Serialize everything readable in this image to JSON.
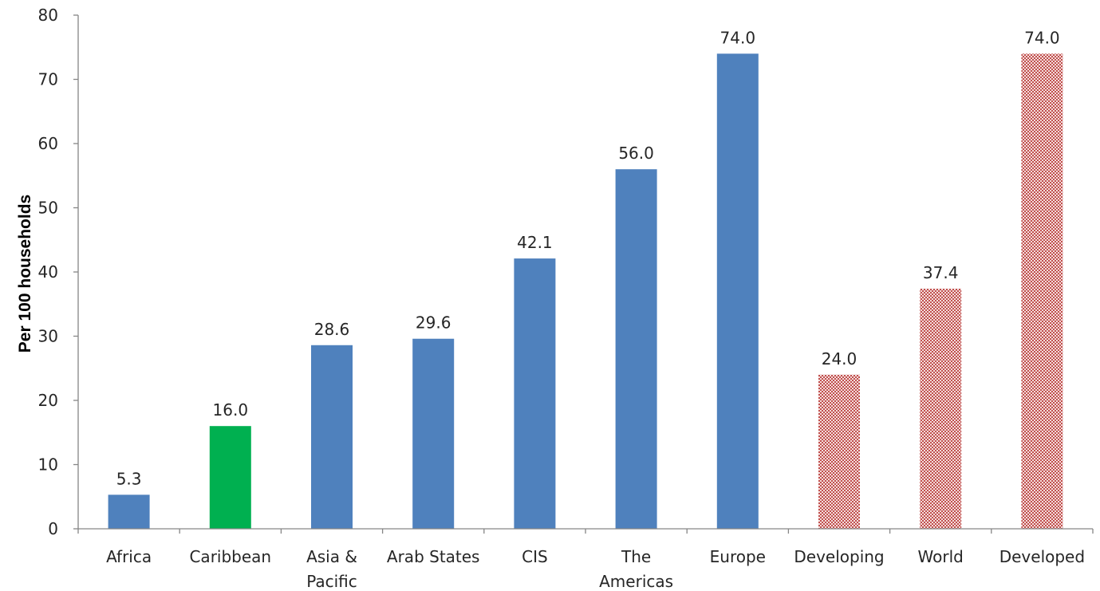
{
  "chart_data": {
    "type": "bar",
    "title": "",
    "xlabel": "",
    "ylabel": "Per 100 households",
    "ylim": [
      0,
      80
    ],
    "yticks": [
      0,
      10,
      20,
      30,
      40,
      50,
      60,
      70,
      80
    ],
    "grid": false,
    "legend": "none",
    "categories": [
      [
        "Africa"
      ],
      [
        "Caribbean"
      ],
      [
        "Asia &",
        "Pacific"
      ],
      [
        "Arab States"
      ],
      [
        "CIS"
      ],
      [
        "The",
        "Americas"
      ],
      [
        "Europe"
      ],
      [
        "Developing"
      ],
      [
        "World"
      ],
      [
        "Developed"
      ]
    ],
    "values": [
      5.3,
      16.0,
      28.6,
      29.6,
      42.1,
      56.0,
      74.0,
      24.0,
      37.4,
      74.0
    ],
    "data_labels": [
      "5.3",
      "16.0",
      "28.6",
      "29.6",
      "42.1",
      "56.0",
      "74.0",
      "24.0",
      "37.4",
      "74.0"
    ],
    "bar_styles": [
      "region",
      "highlight",
      "region",
      "region",
      "region",
      "region",
      "region",
      "aggregate",
      "aggregate",
      "aggregate"
    ],
    "colors": {
      "region": "#4f81bd",
      "highlight": "#00b050",
      "aggregate": "#c0504d",
      "axis": "#868686"
    }
  }
}
